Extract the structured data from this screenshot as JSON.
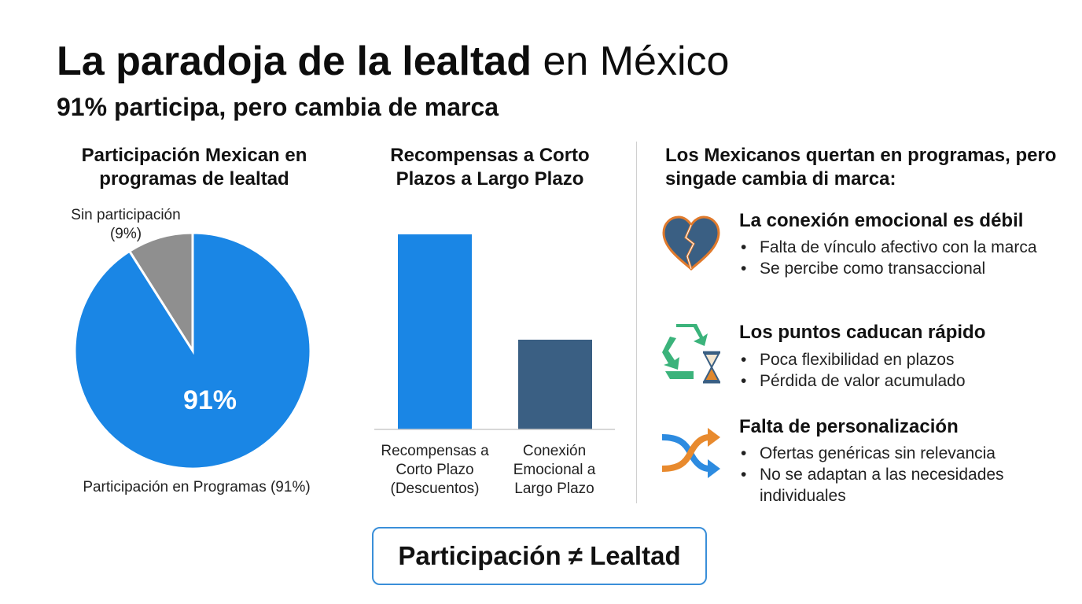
{
  "header": {
    "title_bold": "La paradoja de la lealtad",
    "title_rest": "en México",
    "subtitle": "91% participa, pero cambia de marca"
  },
  "pie_panel": {
    "heading": "Participación Mexican  en programas de lealtad",
    "slice_small_label_line1": "Sin participación",
    "slice_small_label_line2": "(9%)",
    "slice_big_label": "Participación en Programas (91%)",
    "center_value": "91%"
  },
  "bar_panel": {
    "heading": "Recompensas a Corto Plazos a Largo Plazo",
    "category_1": [
      "Recompensas a",
      "Corto Plazo",
      "(Descuentos)"
    ],
    "category_2": [
      "Conexión",
      "Emocional a",
      "Largo Plazo"
    ]
  },
  "chart_data": [
    {
      "type": "pie",
      "title": "Participación Mexican  en programas de lealtad",
      "labels": [
        "Participación en Programas",
        "Sin participación"
      ],
      "values": [
        91,
        9
      ],
      "colors": [
        "#1a86e5",
        "#8f8f8f"
      ]
    },
    {
      "type": "bar",
      "title": "Recompensas a Corto Plazos a Largo Plazo",
      "categories": [
        "Recompensas a Corto Plazo (Descuentos)",
        "Conexión Emocional a Largo Plazo"
      ],
      "values": [
        100,
        46
      ],
      "colors": [
        "#1a86e5",
        "#3a5f83"
      ],
      "ylim": [
        0,
        100
      ]
    }
  ],
  "right_panel": {
    "heading": "Los Mexicanos quertan en programas, pero singade cambia di marca:",
    "items": [
      {
        "icon": "broken-heart-icon",
        "title": "La conexión emocional es débil",
        "bullets": [
          "Falta de vínculo afectivo con la marca",
          "Se percibe como transaccional"
        ]
      },
      {
        "icon": "recycle-hourglass-icon",
        "title": "Los puntos caducan rápido",
        "bullets": [
          "Poca flexibilidad en plazos",
          "Pérdida de valor acumulado"
        ]
      },
      {
        "icon": "shuffle-arrows-icon",
        "title": "Falta de personalización",
        "bullets": [
          "Ofertas genéricas sin relevancia",
          "No se adaptan a las necesidades individuales"
        ]
      }
    ]
  },
  "footer": {
    "label": "Participación ≠ Lealtad"
  }
}
